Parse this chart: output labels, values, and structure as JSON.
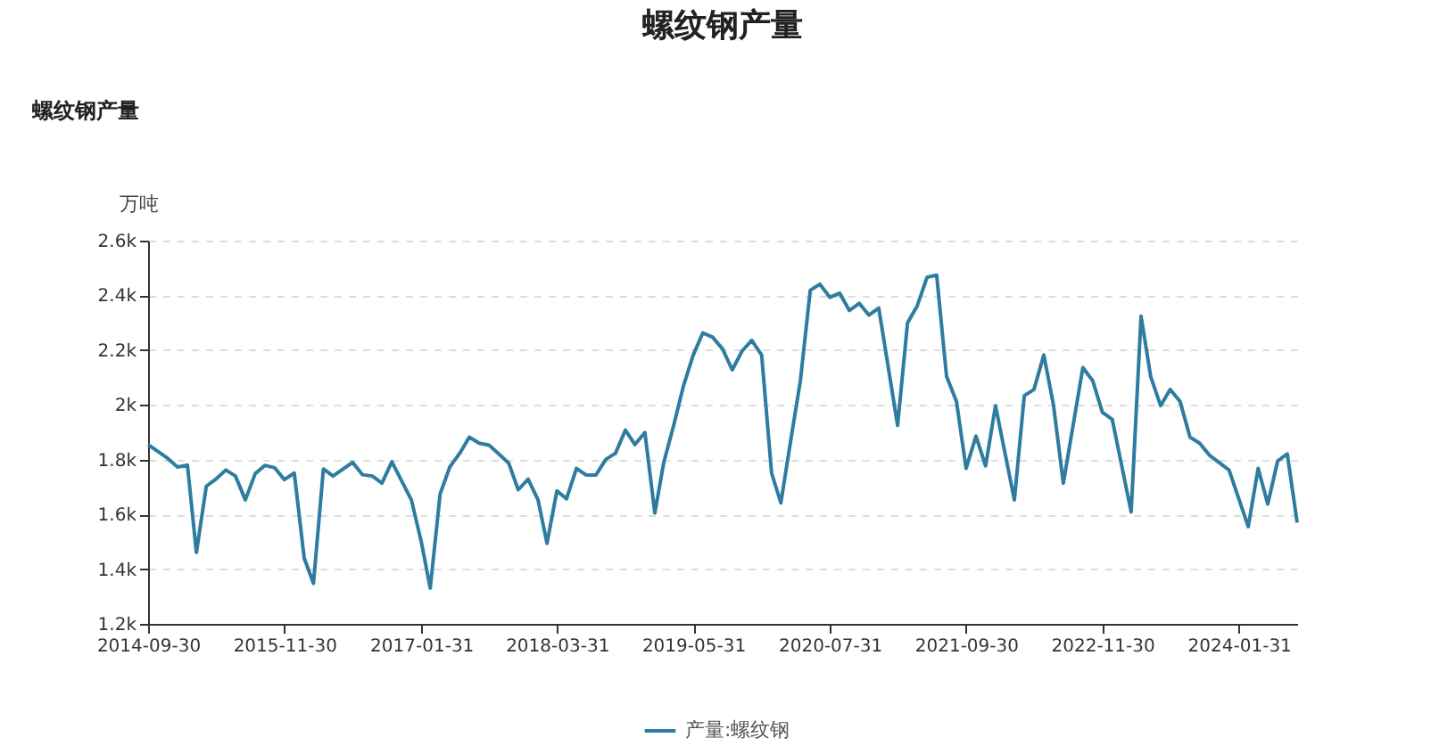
{
  "chart_data": {
    "type": "line",
    "title": "螺纹钢产量",
    "subtitle": "螺纹钢产量",
    "ylabel": "万吨",
    "x": [
      "2014-09-30",
      "2014-11-30",
      "2014-12-31",
      "2015-01-31",
      "2015-02-28",
      "2015-03-31",
      "2015-04-30",
      "2015-05-31",
      "2015-06-30",
      "2015-07-31",
      "2015-08-31",
      "2015-09-30",
      "2015-10-31",
      "2015-11-30",
      "2015-12-31",
      "2016-01-31",
      "2016-02-29",
      "2016-03-31",
      "2016-04-30",
      "2016-06-30",
      "2016-07-31",
      "2016-08-31",
      "2016-09-30",
      "2016-10-31",
      "2016-12-31",
      "2017-01-31",
      "2017-02-28",
      "2017-03-31",
      "2017-04-30",
      "2017-05-31",
      "2017-06-30",
      "2017-07-31",
      "2017-08-31",
      "2017-10-31",
      "2017-11-30",
      "2017-12-31",
      "2018-01-31",
      "2018-02-28",
      "2018-03-31",
      "2018-04-30",
      "2018-05-31",
      "2018-06-30",
      "2018-07-31",
      "2018-08-31",
      "2018-09-30",
      "2018-10-31",
      "2018-11-30",
      "2018-12-31",
      "2019-01-31",
      "2019-02-28",
      "2019-03-31",
      "2019-04-30",
      "2019-05-31",
      "2019-06-30",
      "2019-07-31",
      "2019-08-31",
      "2019-09-30",
      "2019-10-31",
      "2019-11-30",
      "2019-12-31",
      "2020-01-31",
      "2020-02-29",
      "2020-03-31",
      "2020-04-30",
      "2020-05-31",
      "2020-06-30",
      "2020-07-31",
      "2020-08-31",
      "2020-09-30",
      "2020-10-31",
      "2020-11-30",
      "2020-12-31",
      "2021-02-28",
      "2021-03-31",
      "2021-04-30",
      "2021-05-31",
      "2021-06-30",
      "2021-07-31",
      "2021-08-31",
      "2021-09-30",
      "2021-10-31",
      "2021-11-30",
      "2021-12-31",
      "2022-02-28",
      "2022-03-31",
      "2022-04-30",
      "2022-05-31",
      "2022-06-30",
      "2022-07-31",
      "2022-09-30",
      "2022-10-31",
      "2022-11-30",
      "2022-12-31",
      "2023-02-28",
      "2023-03-31",
      "2023-04-30",
      "2023-05-31",
      "2023-06-30",
      "2023-07-31",
      "2023-08-31",
      "2023-09-30",
      "2023-10-31",
      "2023-12-31",
      "2024-02-29",
      "2024-03-31",
      "2024-04-30",
      "2024-05-31",
      "2024-06-30",
      "2024-07-31"
    ],
    "series": [
      {
        "name": "产量:螺纹钢",
        "color": "#2e7ca0",
        "values": [
          1855,
          1805,
          1773,
          1780,
          1461,
          1703,
          1729,
          1762,
          1740,
          1653,
          1749,
          1779,
          1770,
          1727,
          1751,
          1440,
          1348,
          1766,
          1740,
          1790,
          1745,
          1740,
          1714,
          1792,
          1653,
          1500,
          1331,
          1675,
          1773,
          1823,
          1882,
          1860,
          1853,
          1788,
          1690,
          1729,
          1653,
          1494,
          1686,
          1657,
          1768,
          1744,
          1744,
          1801,
          1823,
          1908,
          1855,
          1899,
          1605,
          1790,
          1925,
          2067,
          2182,
          2263,
          2247,
          2204,
          2128,
          2197,
          2236,
          2182,
          1751,
          1642,
          1871,
          2088,
          2419,
          2441,
          2393,
          2408,
          2345,
          2371,
          2328,
          2354,
          1925,
          2300,
          2361,
          2466,
          2474,
          2104,
          2012,
          1768,
          1886,
          1777,
          1997,
          1653,
          2034,
          2056,
          2182,
          2001,
          1714,
          2136,
          2088,
          1973,
          1947,
          1609,
          2324,
          2104,
          1997,
          2056,
          2012,
          1882,
          1860,
          1816,
          1762,
          1555,
          1768,
          1638,
          1795,
          1821,
          1570
        ]
      }
    ],
    "xlim": [
      "2014-09-30",
      "2024-07-31"
    ],
    "xticks": [
      "2014-09-30",
      "2015-11-30",
      "2017-01-31",
      "2018-03-31",
      "2019-05-31",
      "2020-07-31",
      "2021-09-30",
      "2022-11-30",
      "2024-01-31"
    ],
    "ylim": [
      1200,
      2600
    ],
    "yticks": [
      {
        "value": 1200,
        "label": "1.2k"
      },
      {
        "value": 1400,
        "label": "1.4k"
      },
      {
        "value": 1600,
        "label": "1.6k"
      },
      {
        "value": 1800,
        "label": "1.8k"
      },
      {
        "value": 2000,
        "label": "2k"
      },
      {
        "value": 2200,
        "label": "2.2k"
      },
      {
        "value": 2400,
        "label": "2.4k"
      },
      {
        "value": 2600,
        "label": "2.6k"
      }
    ],
    "grid": "y",
    "legend": "bottom",
    "marker": "none",
    "line_style": "solid"
  }
}
